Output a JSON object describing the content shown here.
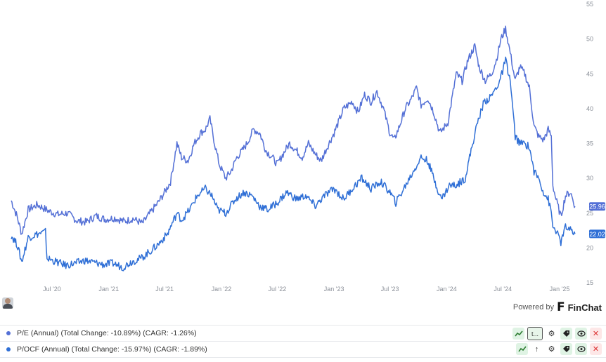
{
  "chart_data": {
    "type": "line",
    "ylim": [
      15,
      55
    ],
    "y_ticks": [
      15,
      20,
      25,
      30,
      35,
      40,
      45,
      50,
      55
    ],
    "x_range": [
      "2020-02-20",
      "2025-02-20"
    ],
    "x_ticks": [
      {
        "date": "2020-07-01",
        "label": "Jul '20"
      },
      {
        "date": "2021-01-01",
        "label": "Jan '21"
      },
      {
        "date": "2021-07-01",
        "label": "Jul '21"
      },
      {
        "date": "2022-01-01",
        "label": "Jan '22"
      },
      {
        "date": "2022-07-01",
        "label": "Jul '22"
      },
      {
        "date": "2023-01-01",
        "label": "Jan '23"
      },
      {
        "date": "2023-07-01",
        "label": "Jul '23"
      },
      {
        "date": "2024-01-01",
        "label": "Jan '24"
      },
      {
        "date": "2024-07-01",
        "label": "Jul '24"
      },
      {
        "date": "2025-01-01",
        "label": "Jan '25"
      }
    ],
    "grid": false,
    "series": [
      {
        "name": "P/E (Annual)",
        "color": "#5470d6",
        "last_value_label": "25.96",
        "points": [
          [
            "2020-02-20",
            26.8
          ],
          [
            "2020-03-10",
            24.5
          ],
          [
            "2020-03-25",
            22.0
          ],
          [
            "2020-04-15",
            25.5
          ],
          [
            "2020-05-15",
            26.2
          ],
          [
            "2020-06-20",
            25.3
          ],
          [
            "2020-07-20",
            24.8
          ],
          [
            "2020-08-20",
            25.0
          ],
          [
            "2020-09-20",
            23.9
          ],
          [
            "2020-10-20",
            23.7
          ],
          [
            "2020-11-20",
            24.6
          ],
          [
            "2020-12-20",
            24.1
          ],
          [
            "2021-01-20",
            24.3
          ],
          [
            "2021-02-20",
            23.8
          ],
          [
            "2021-03-20",
            24.2
          ],
          [
            "2021-04-20",
            23.5
          ],
          [
            "2021-05-15",
            25.0
          ],
          [
            "2021-06-10",
            26.5
          ],
          [
            "2021-07-01",
            28.0
          ],
          [
            "2021-07-20",
            29.5
          ],
          [
            "2021-08-10",
            35.0
          ],
          [
            "2021-08-25",
            33.0
          ],
          [
            "2021-09-15",
            32.5
          ],
          [
            "2021-10-05",
            35.0
          ],
          [
            "2021-10-25",
            36.5
          ],
          [
            "2021-11-10",
            37.0
          ],
          [
            "2021-11-25",
            38.5
          ],
          [
            "2021-12-10",
            35.0
          ],
          [
            "2021-12-25",
            32.0
          ],
          [
            "2022-01-15",
            30.0
          ],
          [
            "2022-02-01",
            31.0
          ],
          [
            "2022-02-20",
            33.0
          ],
          [
            "2022-03-10",
            34.0
          ],
          [
            "2022-03-25",
            35.0
          ],
          [
            "2022-04-15",
            37.0
          ],
          [
            "2022-05-05",
            36.5
          ],
          [
            "2022-05-25",
            34.0
          ],
          [
            "2022-06-15",
            33.0
          ],
          [
            "2022-07-01",
            32.0
          ],
          [
            "2022-07-20",
            33.5
          ],
          [
            "2022-08-10",
            35.0
          ],
          [
            "2022-09-01",
            34.0
          ],
          [
            "2022-09-20",
            33.0
          ],
          [
            "2022-10-10",
            35.0
          ],
          [
            "2022-11-01",
            33.5
          ],
          [
            "2022-11-20",
            32.5
          ],
          [
            "2022-12-10",
            34.5
          ],
          [
            "2023-01-01",
            36.5
          ],
          [
            "2023-01-15",
            38.0
          ],
          [
            "2023-02-01",
            40.0
          ],
          [
            "2023-03-01",
            41.0
          ],
          [
            "2023-03-20",
            39.5
          ],
          [
            "2023-04-10",
            42.0
          ],
          [
            "2023-05-01",
            41.0
          ],
          [
            "2023-05-20",
            42.5
          ],
          [
            "2023-06-10",
            40.0
          ],
          [
            "2023-07-01",
            36.5
          ],
          [
            "2023-07-15",
            35.5
          ],
          [
            "2023-08-01",
            37.5
          ],
          [
            "2023-08-20",
            40.0
          ],
          [
            "2023-09-10",
            41.5
          ],
          [
            "2023-09-25",
            43.0
          ],
          [
            "2023-10-10",
            40.5
          ],
          [
            "2023-11-01",
            41.5
          ],
          [
            "2023-11-20",
            39.5
          ],
          [
            "2023-12-10",
            36.5
          ],
          [
            "2024-01-05",
            38.0
          ],
          [
            "2024-02-01",
            45.0
          ],
          [
            "2024-02-20",
            44.0
          ],
          [
            "2024-03-10",
            47.0
          ],
          [
            "2024-04-01",
            49.0
          ],
          [
            "2024-04-15",
            46.0
          ],
          [
            "2024-05-05",
            44.0
          ],
          [
            "2024-05-25",
            45.0
          ],
          [
            "2024-06-10",
            47.0
          ],
          [
            "2024-06-25",
            50.0
          ],
          [
            "2024-07-10",
            51.5
          ],
          [
            "2024-07-25",
            48.0
          ],
          [
            "2024-08-10",
            44.0
          ],
          [
            "2024-08-25",
            46.0
          ],
          [
            "2024-09-10",
            45.0
          ],
          [
            "2024-09-25",
            43.0
          ],
          [
            "2024-10-10",
            37.5
          ],
          [
            "2024-10-25",
            36.0
          ],
          [
            "2024-11-10",
            35.5
          ],
          [
            "2024-11-25",
            37.0
          ],
          [
            "2024-12-05",
            36.0
          ],
          [
            "2024-12-10",
            29.0
          ],
          [
            "2024-12-20",
            27.0
          ],
          [
            "2025-01-05",
            24.5
          ],
          [
            "2025-01-20",
            27.5
          ],
          [
            "2025-02-05",
            28.0
          ],
          [
            "2025-02-20",
            25.96
          ]
        ]
      },
      {
        "name": "P/OCF (Annual)",
        "color": "#2f6fd6",
        "last_value_label": "22.02",
        "points": [
          [
            "2020-02-20",
            21.8
          ],
          [
            "2020-03-10",
            20.5
          ],
          [
            "2020-03-25",
            18.0
          ],
          [
            "2020-04-15",
            21.5
          ],
          [
            "2020-05-15",
            22.0
          ],
          [
            "2020-06-10",
            22.3
          ],
          [
            "2020-06-15",
            18.5
          ],
          [
            "2020-07-15",
            18.0
          ],
          [
            "2020-08-15",
            17.5
          ],
          [
            "2020-09-15",
            17.8
          ],
          [
            "2020-10-15",
            18.2
          ],
          [
            "2020-11-15",
            17.9
          ],
          [
            "2020-12-15",
            17.6
          ],
          [
            "2021-01-15",
            17.8
          ],
          [
            "2021-02-15",
            17.2
          ],
          [
            "2021-03-15",
            18.0
          ],
          [
            "2021-04-15",
            18.5
          ],
          [
            "2021-05-15",
            19.5
          ],
          [
            "2021-06-10",
            20.5
          ],
          [
            "2021-07-10",
            22.0
          ],
          [
            "2021-08-10",
            25.0
          ],
          [
            "2021-08-25",
            24.0
          ],
          [
            "2021-09-20",
            25.5
          ],
          [
            "2021-10-15",
            27.5
          ],
          [
            "2021-11-10",
            28.5
          ],
          [
            "2021-12-01",
            27.5
          ],
          [
            "2021-12-20",
            25.5
          ],
          [
            "2022-01-15",
            25.0
          ],
          [
            "2022-02-15",
            27.0
          ],
          [
            "2022-03-15",
            28.0
          ],
          [
            "2022-04-10",
            27.5
          ],
          [
            "2022-05-05",
            26.0
          ],
          [
            "2022-06-01",
            25.5
          ],
          [
            "2022-07-01",
            26.5
          ],
          [
            "2022-08-01",
            28.0
          ],
          [
            "2022-09-01",
            27.0
          ],
          [
            "2022-10-01",
            27.5
          ],
          [
            "2022-11-01",
            26.0
          ],
          [
            "2022-12-01",
            27.5
          ],
          [
            "2023-01-01",
            28.5
          ],
          [
            "2023-02-01",
            27.0
          ],
          [
            "2023-03-01",
            28.5
          ],
          [
            "2023-04-01",
            30.0
          ],
          [
            "2023-05-01",
            28.5
          ],
          [
            "2023-06-01",
            29.5
          ],
          [
            "2023-07-01",
            28.0
          ],
          [
            "2023-07-20",
            26.5
          ],
          [
            "2023-08-15",
            28.5
          ],
          [
            "2023-09-15",
            31.0
          ],
          [
            "2023-10-10",
            33.0
          ],
          [
            "2023-11-01",
            32.5
          ],
          [
            "2023-11-20",
            30.0
          ],
          [
            "2023-12-15",
            27.0
          ],
          [
            "2024-01-10",
            29.0
          ],
          [
            "2024-02-01",
            29.0
          ],
          [
            "2024-03-01",
            30.0
          ],
          [
            "2024-03-20",
            34.0
          ],
          [
            "2024-04-10",
            38.0
          ],
          [
            "2024-05-01",
            41.0
          ],
          [
            "2024-05-20",
            41.5
          ],
          [
            "2024-06-10",
            43.0
          ],
          [
            "2024-06-25",
            44.5
          ],
          [
            "2024-07-10",
            47.0
          ],
          [
            "2024-07-25",
            44.0
          ],
          [
            "2024-08-10",
            36.0
          ],
          [
            "2024-08-25",
            35.0
          ],
          [
            "2024-09-10",
            35.0
          ],
          [
            "2024-09-25",
            34.5
          ],
          [
            "2024-10-10",
            31.0
          ],
          [
            "2024-10-25",
            30.0
          ],
          [
            "2024-11-10",
            28.0
          ],
          [
            "2024-11-25",
            27.0
          ],
          [
            "2024-12-05",
            25.0
          ],
          [
            "2024-12-10",
            23.0
          ],
          [
            "2024-12-20",
            22.5
          ],
          [
            "2025-01-05",
            20.8
          ],
          [
            "2025-01-20",
            23.0
          ],
          [
            "2025-02-05",
            22.5
          ],
          [
            "2025-02-20",
            22.02
          ]
        ]
      }
    ]
  },
  "branding": {
    "powered_by": "Powered by",
    "logo_glyph": "F",
    "name": "FinChat"
  },
  "legend": [
    {
      "color": "#5470d6",
      "text": "P/E (Annual) (Total Change: -10.89%) (CAGR: -1.26%)",
      "icons": [
        "trend-icon",
        "t...",
        "gear-icon",
        "tag-icon",
        "eye-icon",
        "close-icon"
      ]
    },
    {
      "color": "#2f6fd6",
      "text": "P/OCF (Annual) (Total Change: -15.97%) (CAGR: -1.89%)",
      "icons": [
        "trend-icon",
        "t...",
        "gear-icon",
        "tag-icon",
        "eye-icon",
        "close-icon"
      ]
    }
  ]
}
